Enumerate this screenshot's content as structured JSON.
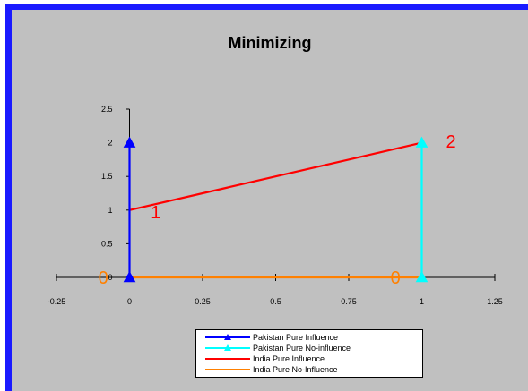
{
  "chart_data": {
    "type": "line",
    "title": "Minimizing",
    "xlim": [
      -0.25,
      1.25
    ],
    "ylim": [
      0,
      2.5
    ],
    "x_ticks": [
      "-0.25",
      "0",
      "0.25",
      "0.5",
      "0.75",
      "1",
      "1.25"
    ],
    "x_tick_values": [
      -0.25,
      0,
      0.25,
      0.5,
      0.75,
      1,
      1.25
    ],
    "y_ticks": [
      "0",
      "0.5",
      "1",
      "1.5",
      "2",
      "2.5"
    ],
    "y_tick_values": [
      0,
      0.5,
      1,
      1.5,
      2,
      2.5
    ],
    "grid": false,
    "legend_position": "bottom",
    "series": [
      {
        "name": "Pakistan Pure Influence",
        "color": "#0000ff",
        "marker": "triangle",
        "points": [
          [
            0,
            0
          ],
          [
            0,
            2
          ]
        ]
      },
      {
        "name": "Pakistan Pure No-influence",
        "color": "#00ffff",
        "marker": "triangle",
        "points": [
          [
            1,
            0
          ],
          [
            1,
            2
          ]
        ]
      },
      {
        "name": "India Pure Influence",
        "color": "#ff0000",
        "marker": "none",
        "points": [
          [
            0,
            1
          ],
          [
            1,
            2
          ]
        ]
      },
      {
        "name": "India Pure No-Influence",
        "color": "#ff8000",
        "marker": "none",
        "points": [
          [
            0,
            0
          ],
          [
            1,
            0
          ]
        ]
      }
    ],
    "annotations": [
      {
        "text": "1",
        "x": 0.09,
        "y": 0.97,
        "color": "#ff0000"
      },
      {
        "text": "2",
        "x": 1.1,
        "y": 2.02,
        "color": "#ff0000"
      },
      {
        "text": "0",
        "x": -0.09,
        "y": 0.0,
        "color": "#ff8000"
      },
      {
        "text": "0",
        "x": 0.91,
        "y": 0.0,
        "color": "#ff8000"
      }
    ]
  }
}
